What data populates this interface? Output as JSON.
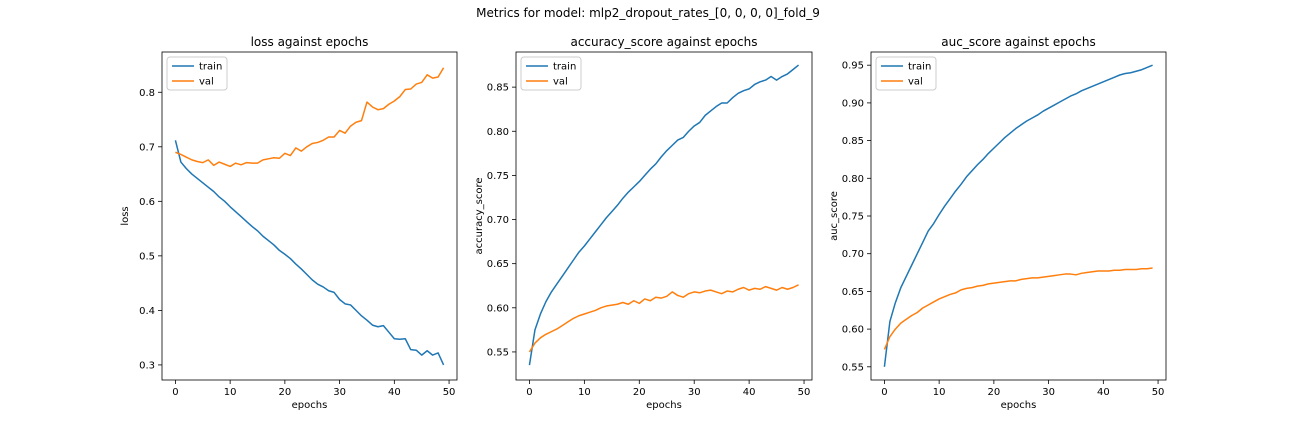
{
  "figure": {
    "suptitle": "Metrics for model: mlp2_dropout_rates_[0, 0, 0, 0]_fold_9"
  },
  "colors": {
    "train": "#1f77b4",
    "val": "#ff7f0e"
  },
  "chart_data": [
    {
      "type": "line",
      "title": "loss against epochs",
      "xlabel": "epochs",
      "ylabel": "loss",
      "xlim": [
        -2.45,
        51.45
      ],
      "ylim": [
        0.27235,
        0.87385
      ],
      "xticks": [
        0,
        10,
        20,
        30,
        40,
        50
      ],
      "yticks": [
        0.3,
        0.4,
        0.5,
        0.6,
        0.7,
        0.8
      ],
      "ytick_labels": [
        "0.3",
        "0.4",
        "0.5",
        "0.6",
        "0.7",
        "0.8"
      ],
      "legend": "top-left",
      "grid": false,
      "series": [
        {
          "name": "train",
          "color": "#1f77b4",
          "values": [
            0.712,
            0.672,
            0.66,
            0.65,
            0.642,
            0.634,
            0.626,
            0.618,
            0.608,
            0.6,
            0.59,
            0.581,
            0.572,
            0.563,
            0.554,
            0.546,
            0.536,
            0.528,
            0.52,
            0.51,
            0.503,
            0.495,
            0.485,
            0.476,
            0.466,
            0.456,
            0.448,
            0.443,
            0.436,
            0.433,
            0.42,
            0.412,
            0.41,
            0.4,
            0.39,
            0.382,
            0.373,
            0.37,
            0.372,
            0.36,
            0.348,
            0.347,
            0.348,
            0.328,
            0.327,
            0.318,
            0.326,
            0.318,
            0.322,
            0.3
          ]
        },
        {
          "name": "val",
          "color": "#ff7f0e",
          "values": [
            0.69,
            0.686,
            0.681,
            0.676,
            0.673,
            0.671,
            0.676,
            0.666,
            0.672,
            0.668,
            0.664,
            0.67,
            0.667,
            0.671,
            0.67,
            0.67,
            0.676,
            0.678,
            0.68,
            0.679,
            0.688,
            0.684,
            0.698,
            0.692,
            0.7,
            0.706,
            0.708,
            0.712,
            0.718,
            0.718,
            0.73,
            0.725,
            0.738,
            0.745,
            0.748,
            0.782,
            0.773,
            0.768,
            0.77,
            0.778,
            0.784,
            0.792,
            0.805,
            0.806,
            0.815,
            0.818,
            0.832,
            0.826,
            0.828,
            0.845
          ]
        }
      ]
    },
    {
      "type": "line",
      "title": "accuracy_score against epochs",
      "xlabel": "epochs",
      "ylabel": "accuracy_score",
      "xlim": [
        -2.45,
        51.45
      ],
      "ylim": [
        0.5182,
        0.8898
      ],
      "xticks": [
        0,
        10,
        20,
        30,
        40,
        50
      ],
      "yticks": [
        0.55,
        0.6,
        0.65,
        0.7,
        0.75,
        0.8,
        0.85
      ],
      "ytick_labels": [
        "0.55",
        "0.60",
        "0.65",
        "0.70",
        "0.75",
        "0.80",
        "0.85"
      ],
      "legend": "top-left",
      "grid": false,
      "series": [
        {
          "name": "train",
          "color": "#1f77b4",
          "values": [
            0.535,
            0.575,
            0.593,
            0.607,
            0.618,
            0.627,
            0.636,
            0.645,
            0.654,
            0.663,
            0.67,
            0.678,
            0.686,
            0.694,
            0.702,
            0.709,
            0.716,
            0.724,
            0.731,
            0.737,
            0.743,
            0.75,
            0.757,
            0.763,
            0.771,
            0.778,
            0.784,
            0.79,
            0.793,
            0.8,
            0.806,
            0.81,
            0.818,
            0.823,
            0.828,
            0.832,
            0.832,
            0.838,
            0.843,
            0.846,
            0.848,
            0.853,
            0.856,
            0.858,
            0.862,
            0.858,
            0.862,
            0.865,
            0.87,
            0.875
          ]
        },
        {
          "name": "val",
          "color": "#ff7f0e",
          "values": [
            0.55,
            0.56,
            0.566,
            0.57,
            0.573,
            0.576,
            0.58,
            0.584,
            0.588,
            0.591,
            0.593,
            0.595,
            0.597,
            0.6,
            0.602,
            0.603,
            0.604,
            0.606,
            0.604,
            0.608,
            0.605,
            0.61,
            0.608,
            0.612,
            0.611,
            0.613,
            0.618,
            0.614,
            0.612,
            0.616,
            0.618,
            0.617,
            0.619,
            0.62,
            0.618,
            0.616,
            0.619,
            0.618,
            0.621,
            0.623,
            0.62,
            0.622,
            0.621,
            0.624,
            0.622,
            0.62,
            0.623,
            0.621,
            0.623,
            0.626
          ]
        }
      ]
    },
    {
      "type": "line",
      "title": "auc_score against epochs",
      "xlabel": "epochs",
      "ylabel": "auc_score",
      "xlim": [
        -2.45,
        51.45
      ],
      "ylim": [
        0.5325,
        0.9675
      ],
      "xticks": [
        0,
        10,
        20,
        30,
        40,
        50
      ],
      "yticks": [
        0.55,
        0.6,
        0.65,
        0.7,
        0.75,
        0.8,
        0.85,
        0.9,
        0.95
      ],
      "ytick_labels": [
        "0.55",
        "0.60",
        "0.65",
        "0.70",
        "0.75",
        "0.80",
        "0.85",
        "0.90",
        "0.95"
      ],
      "legend": "top-left",
      "grid": false,
      "series": [
        {
          "name": "train",
          "color": "#1f77b4",
          "values": [
            0.55,
            0.61,
            0.635,
            0.655,
            0.67,
            0.685,
            0.7,
            0.715,
            0.73,
            0.74,
            0.752,
            0.763,
            0.773,
            0.783,
            0.792,
            0.802,
            0.81,
            0.818,
            0.825,
            0.833,
            0.84,
            0.847,
            0.854,
            0.86,
            0.866,
            0.871,
            0.876,
            0.88,
            0.884,
            0.889,
            0.893,
            0.897,
            0.901,
            0.905,
            0.909,
            0.912,
            0.916,
            0.919,
            0.922,
            0.925,
            0.928,
            0.931,
            0.934,
            0.937,
            0.939,
            0.94,
            0.942,
            0.944,
            0.947,
            0.95
          ]
        },
        {
          "name": "val",
          "color": "#ff7f0e",
          "values": [
            0.573,
            0.59,
            0.6,
            0.608,
            0.613,
            0.618,
            0.622,
            0.628,
            0.632,
            0.636,
            0.64,
            0.643,
            0.646,
            0.648,
            0.652,
            0.654,
            0.655,
            0.657,
            0.658,
            0.66,
            0.661,
            0.662,
            0.663,
            0.664,
            0.664,
            0.666,
            0.667,
            0.668,
            0.668,
            0.669,
            0.67,
            0.671,
            0.672,
            0.673,
            0.673,
            0.672,
            0.674,
            0.675,
            0.676,
            0.677,
            0.677,
            0.677,
            0.678,
            0.678,
            0.679,
            0.679,
            0.679,
            0.68,
            0.68,
            0.681
          ]
        }
      ]
    }
  ]
}
